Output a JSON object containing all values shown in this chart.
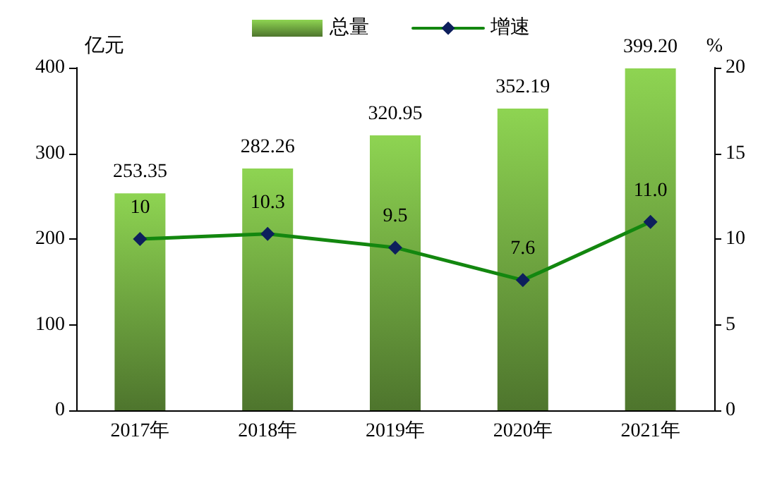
{
  "chart_data": {
    "type": "bar",
    "ylabel": "亿元",
    "y2label": "%",
    "categories": [
      "2017年",
      "2018年",
      "2019年",
      "2020年",
      "2021年"
    ],
    "series": [
      {
        "name": "总量",
        "color": "#8ed452",
        "values": [
          253.35,
          282.26,
          320.95,
          352.19,
          399.2
        ],
        "value_labels": [
          "253.35",
          "282.26",
          "320.95",
          "352.19",
          "399.20"
        ]
      },
      {
        "name": "增速",
        "type": "line",
        "axis": "y2",
        "color": "#13870f",
        "values": [
          10,
          10.3,
          9.5,
          7.6,
          11.0
        ],
        "value_labels": [
          "10",
          "10.3",
          "9.5",
          "7.6",
          "11.0"
        ]
      }
    ],
    "ylim": [
      0,
      400
    ],
    "yticks": [
      0,
      100,
      200,
      300,
      400
    ],
    "y2lim": [
      0,
      20
    ],
    "y2ticks": [
      0,
      5,
      10,
      15,
      20
    ],
    "legend": "top",
    "grid": false,
    "marker": "diamond",
    "line_style": "solid"
  }
}
